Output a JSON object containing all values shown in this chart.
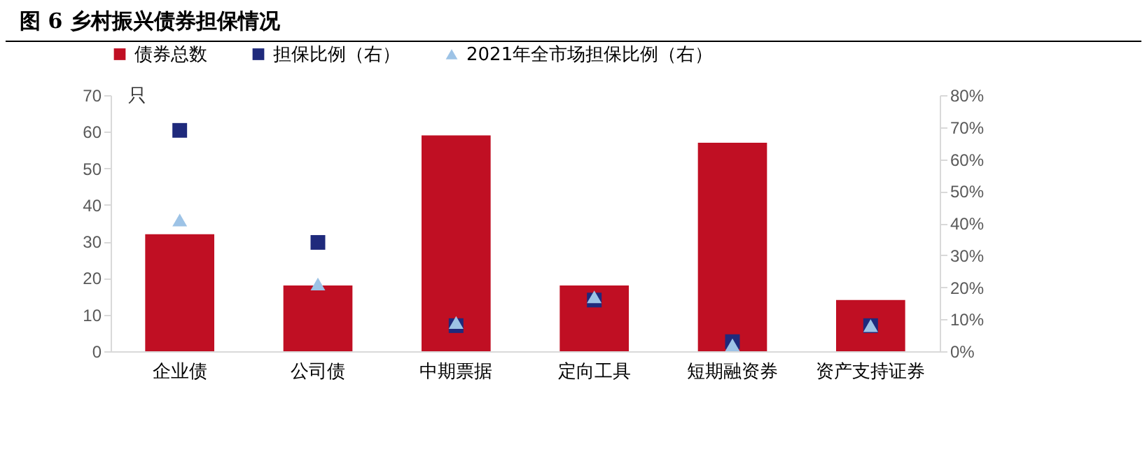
{
  "chart_data": {
    "type": "bar",
    "title": "图 6  乡村振兴债券担保情况",
    "ylabel": "只",
    "categories": [
      "企业债",
      "公司债",
      "中期票据",
      "定向工具",
      "短期融资券",
      "资产支持证券"
    ],
    "series": [
      {
        "name": "债券总数",
        "color": "#c00f23",
        "values": [
          32,
          18,
          59,
          18,
          57,
          14
        ]
      },
      {
        "name": "担保比例（右）",
        "type": "scatter",
        "marker": "square",
        "axis": "y2",
        "color": "#1f2a7c",
        "values": [
          69,
          34,
          8,
          16,
          3,
          8
        ]
      },
      {
        "name": "2021年全市场担保比例（右）",
        "type": "scatter",
        "marker": "triangle",
        "axis": "y2",
        "color": "#9dc3e6",
        "values": [
          41,
          21,
          9,
          17,
          2,
          8
        ]
      }
    ],
    "ylim": [
      0,
      70
    ],
    "yticks": [
      0,
      10,
      20,
      30,
      40,
      50,
      60,
      70
    ],
    "y2lim": [
      0,
      80
    ],
    "y2ticks": [
      {
        "value": 0,
        "label": "0%"
      },
      {
        "value": 10,
        "label": "10%"
      },
      {
        "value": 20,
        "label": "20%"
      },
      {
        "value": 30,
        "label": "30%"
      },
      {
        "value": 40,
        "label": "40%"
      },
      {
        "value": 50,
        "label": "50%"
      },
      {
        "value": 60,
        "label": "60%"
      },
      {
        "value": 70,
        "label": "70%"
      },
      {
        "value": 80,
        "label": "80%"
      }
    ],
    "grid": false,
    "legend": "top"
  }
}
